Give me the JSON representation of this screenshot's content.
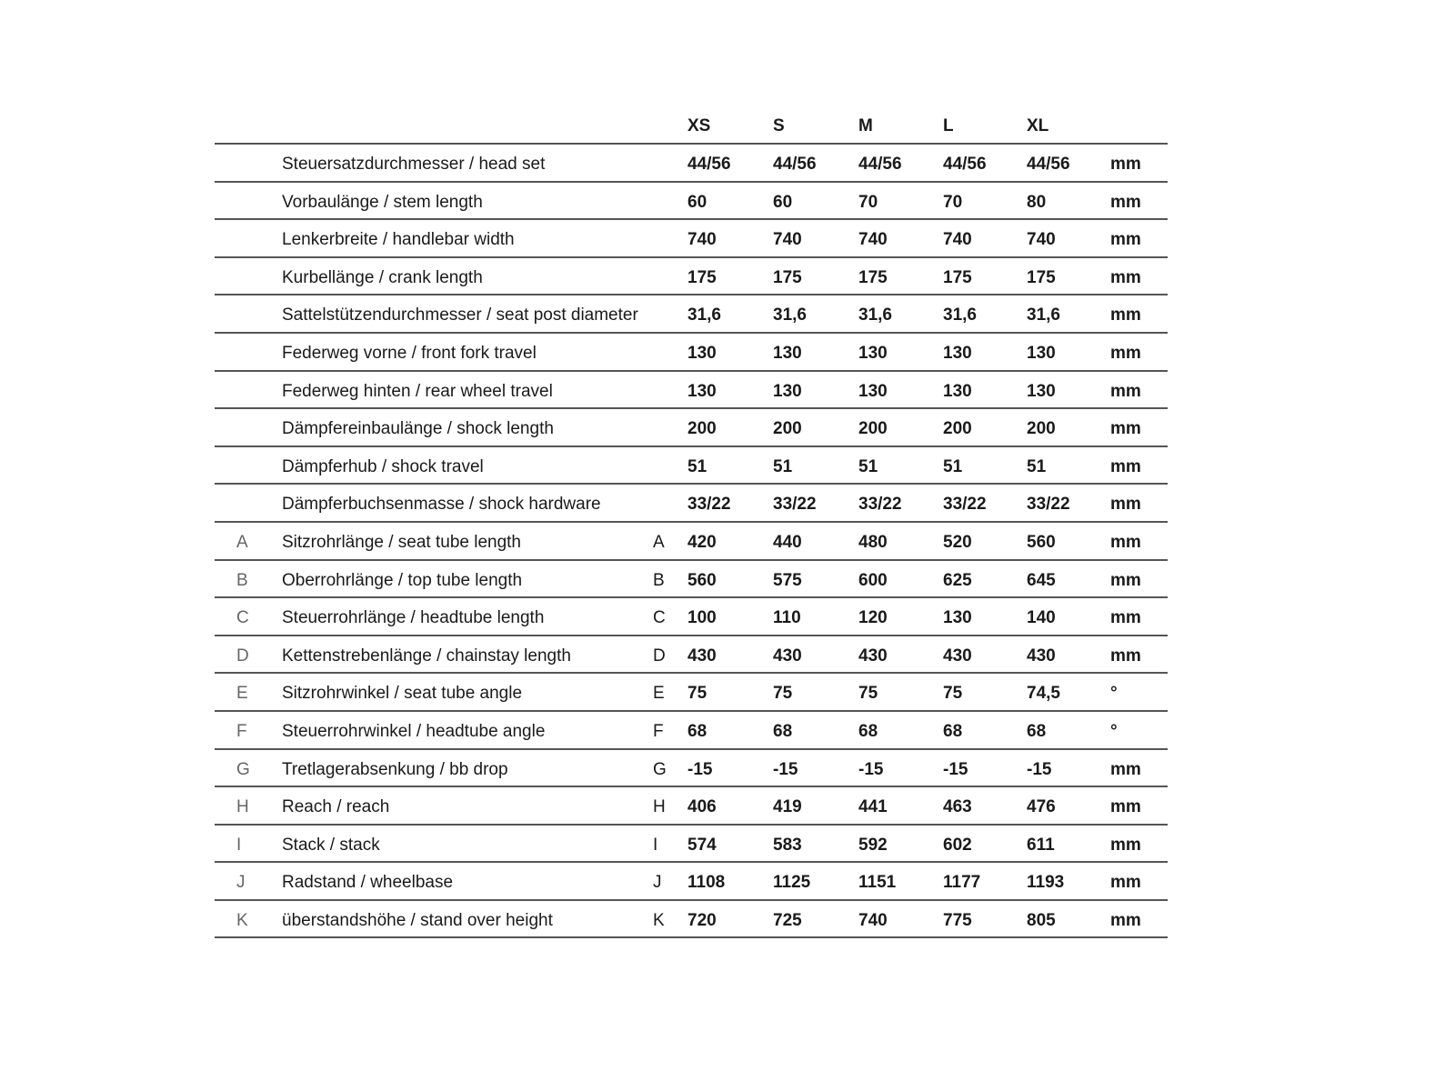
{
  "table": {
    "sizes": [
      "XS",
      "S",
      "M",
      "L",
      "XL"
    ],
    "rows": [
      {
        "letter": "",
        "label": "Steuersatzdurchmesser / head set",
        "values": [
          "44/56",
          "44/56",
          "44/56",
          "44/56",
          "44/56"
        ],
        "unit": "mm"
      },
      {
        "letter": "",
        "label": "Vorbaulänge / stem length",
        "values": [
          "60",
          "60",
          "70",
          "70",
          "80"
        ],
        "unit": "mm"
      },
      {
        "letter": "",
        "label": "Lenkerbreite / handlebar width",
        "values": [
          "740",
          "740",
          "740",
          "740",
          "740"
        ],
        "unit": "mm"
      },
      {
        "letter": "",
        "label": "Kurbellänge / crank length",
        "values": [
          "175",
          "175",
          "175",
          "175",
          "175"
        ],
        "unit": "mm"
      },
      {
        "letter": "",
        "label": "Sattelstützendurchmesser / seat post diameter",
        "values": [
          "31,6",
          "31,6",
          "31,6",
          "31,6",
          "31,6"
        ],
        "unit": "mm"
      },
      {
        "letter": "",
        "label": "Federweg vorne / front fork travel",
        "values": [
          "130",
          "130",
          "130",
          "130",
          "130"
        ],
        "unit": "mm"
      },
      {
        "letter": "",
        "label": "Federweg hinten / rear wheel travel",
        "values": [
          "130",
          "130",
          "130",
          "130",
          "130"
        ],
        "unit": "mm"
      },
      {
        "letter": "",
        "label": "Dämpfereinbaulänge / shock length",
        "values": [
          "200",
          "200",
          "200",
          "200",
          "200"
        ],
        "unit": "mm"
      },
      {
        "letter": "",
        "label": "Dämpferhub / shock travel",
        "values": [
          "51",
          "51",
          "51",
          "51",
          "51"
        ],
        "unit": "mm"
      },
      {
        "letter": "",
        "label": "Dämpferbuchsenmasse / shock hardware",
        "values": [
          "33/22",
          "33/22",
          "33/22",
          "33/22",
          "33/22"
        ],
        "unit": "mm"
      },
      {
        "letter": "A",
        "label": "Sitzrohrlänge / seat tube length",
        "values": [
          "420",
          "440",
          "480",
          "520",
          "560"
        ],
        "unit": "mm"
      },
      {
        "letter": "B",
        "label": "Oberrohrlänge / top tube length",
        "values": [
          "560",
          "575",
          "600",
          "625",
          "645"
        ],
        "unit": "mm"
      },
      {
        "letter": "C",
        "label": "Steuerrohrlänge / headtube length",
        "values": [
          "100",
          "110",
          "120",
          "130",
          "140"
        ],
        "unit": "mm"
      },
      {
        "letter": "D",
        "label": "Kettenstrebenlänge / chainstay length",
        "values": [
          "430",
          "430",
          "430",
          "430",
          "430"
        ],
        "unit": "mm"
      },
      {
        "letter": "E",
        "label": "Sitzrohrwinkel / seat tube angle",
        "values": [
          "75",
          "75",
          "75",
          "75",
          "74,5"
        ],
        "unit": "°"
      },
      {
        "letter": "F",
        "label": "Steuerrohrwinkel / headtube angle",
        "values": [
          "68",
          "68",
          "68",
          "68",
          "68"
        ],
        "unit": "°"
      },
      {
        "letter": "G",
        "label": "Tretlagerabsenkung / bb drop",
        "values": [
          "-15",
          "-15",
          "-15",
          "-15",
          "-15"
        ],
        "unit": "mm"
      },
      {
        "letter": "H",
        "label": "Reach / reach",
        "values": [
          "406",
          "419",
          "441",
          "463",
          "476"
        ],
        "unit": "mm"
      },
      {
        "letter": "I",
        "label": "Stack / stack",
        "values": [
          "574",
          "583",
          "592",
          "602",
          "611"
        ],
        "unit": "mm"
      },
      {
        "letter": "J",
        "label": "Radstand / wheelbase",
        "values": [
          "1108",
          "1125",
          "1151",
          "1177",
          "1193"
        ],
        "unit": "mm"
      },
      {
        "letter": "K",
        "label": "überstandshöhe / stand over height",
        "values": [
          "720",
          "725",
          "740",
          "775",
          "805"
        ],
        "unit": "mm"
      }
    ]
  }
}
